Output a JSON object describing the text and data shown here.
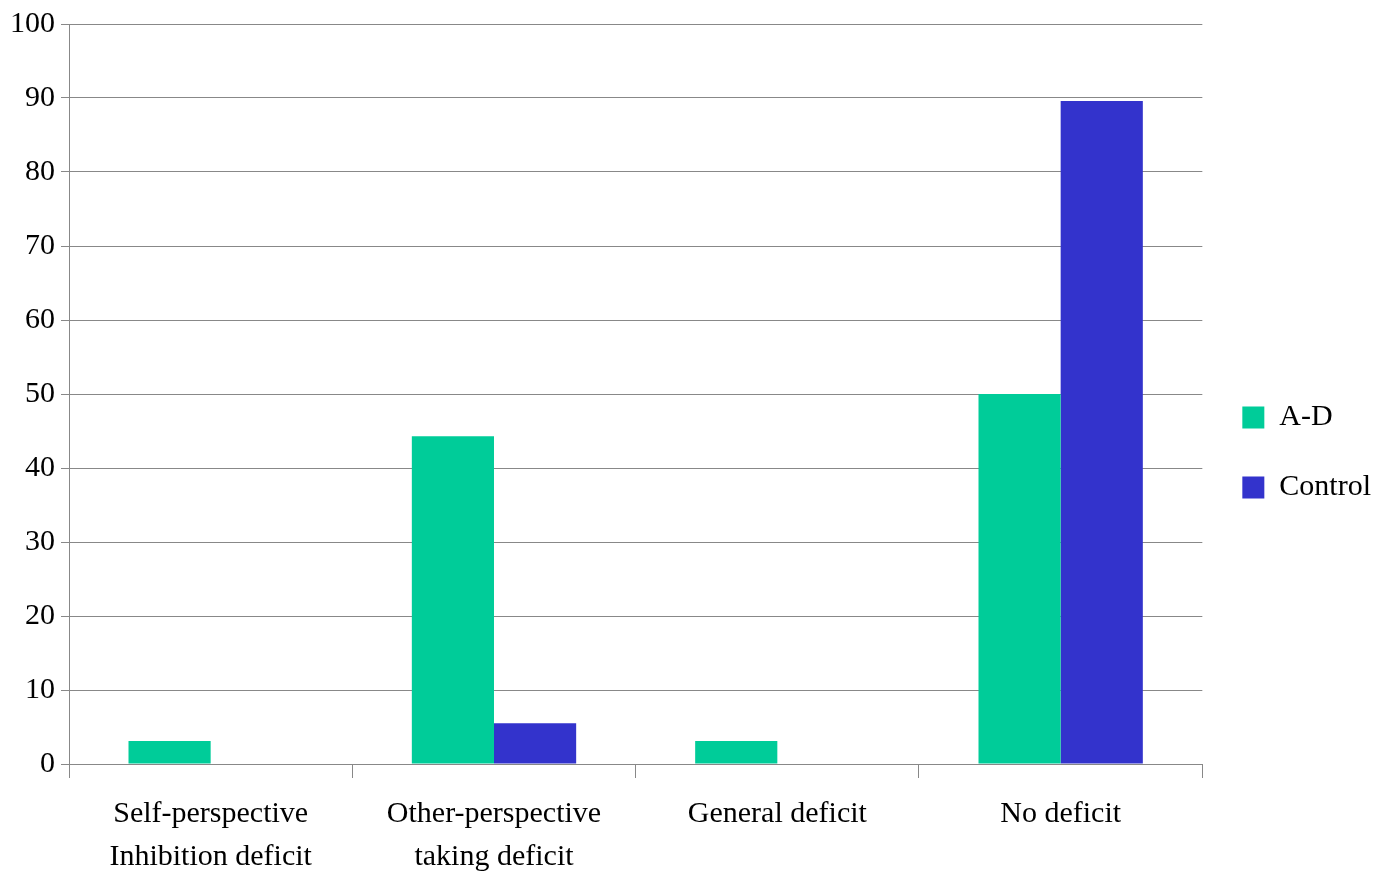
{
  "chart_data": {
    "type": "bar",
    "categories": [
      "Self-perspective Inhibition deficit",
      "Other-perspective taking deficit",
      "General deficit",
      "No deficit"
    ],
    "series": [
      {
        "name": "A-D",
        "color": "#00cc99",
        "values": [
          3.1,
          44.3,
          3.1,
          50
        ]
      },
      {
        "name": "Control",
        "color": "#3333cc",
        "values": [
          0,
          5.5,
          0,
          89.6
        ]
      }
    ],
    "ylim": [
      0,
      100
    ],
    "yticks": [
      0,
      10,
      20,
      30,
      40,
      50,
      60,
      70,
      80,
      90,
      100
    ],
    "grid": "y",
    "legend": "right"
  }
}
